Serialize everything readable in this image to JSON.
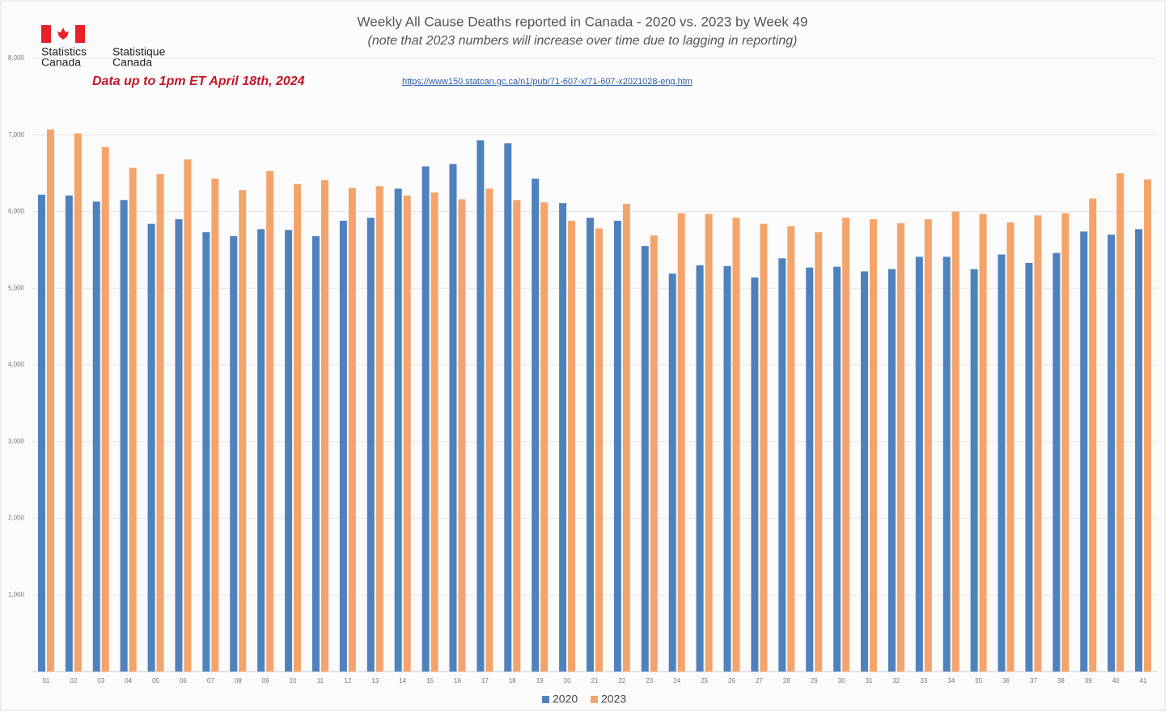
{
  "logo": {
    "en": [
      "Statistics",
      "Canada"
    ],
    "fr": [
      "Statistique",
      "Canada"
    ]
  },
  "chart_data": {
    "type": "bar",
    "title": "Weekly All Cause Deaths reported in Canada - 2020 vs. 2023 by Week 49",
    "subtitle": "(note that 2023 numbers will increase over time due to lagging in reporting)",
    "annotations": [
      "Data up to 1pm ET April 18th, 2024",
      "https://www150.statcan.gc.ca/n1/pub/71-607-x/71-607-x2021028-eng.htm"
    ],
    "categories": [
      "01",
      "02",
      "03",
      "04",
      "05",
      "06",
      "07",
      "08",
      "09",
      "10",
      "11",
      "12",
      "13",
      "14",
      "15",
      "16",
      "17",
      "18",
      "19",
      "20",
      "21",
      "22",
      "23",
      "24",
      "25",
      "26",
      "27",
      "28",
      "29",
      "30",
      "31",
      "32",
      "33",
      "34",
      "35",
      "36",
      "37",
      "38",
      "39",
      "40",
      "41"
    ],
    "series": [
      {
        "name": "2020",
        "color": "#4f81bd",
        "values": [
          6220,
          6210,
          6130,
          6150,
          5840,
          5900,
          5730,
          5680,
          5770,
          5760,
          5680,
          5880,
          5920,
          6300,
          6590,
          6620,
          6930,
          6890,
          6430,
          6110,
          5920,
          5880,
          5550,
          5190,
          5300,
          5290,
          5140,
          5390,
          5270,
          5280,
          5220,
          5250,
          5410,
          5410,
          5250,
          5440,
          5330,
          5460,
          5740,
          5700,
          5770
        ]
      },
      {
        "name": "2023",
        "color": "#f4a46a",
        "values": [
          7070,
          7020,
          6840,
          6570,
          6490,
          6680,
          6430,
          6280,
          6530,
          6360,
          6410,
          6310,
          6330,
          6210,
          6250,
          6160,
          6300,
          6150,
          6120,
          5880,
          5780,
          6100,
          5690,
          5980,
          5970,
          5920,
          5840,
          5810,
          5730,
          5920,
          5900,
          5850,
          5900,
          6000,
          5970,
          5860,
          5950,
          5980,
          6170,
          6500,
          6420
        ]
      }
    ],
    "ylim": [
      0,
      8000
    ],
    "yticks": [
      {
        "value": 1000,
        "label": "1,000"
      },
      {
        "value": 2000,
        "label": "2,000"
      },
      {
        "value": 3000,
        "label": "3,000"
      },
      {
        "value": 4000,
        "label": "4,000"
      },
      {
        "value": 5000,
        "label": "5,000"
      },
      {
        "value": 6000,
        "label": "6,000"
      },
      {
        "value": 7000,
        "label": "7,000"
      },
      {
        "value": 8000,
        "label": "8,000"
      }
    ],
    "grid": true,
    "legend": "bottom"
  }
}
